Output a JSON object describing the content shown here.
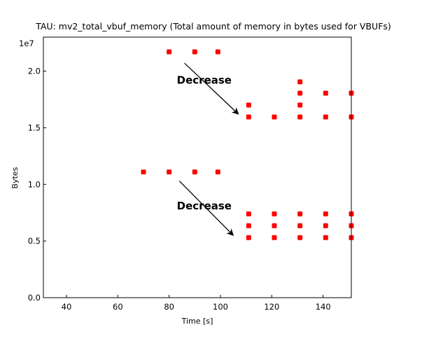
{
  "chart_data": {
    "type": "scatter",
    "title": "TAU: mv2_total_vbuf_memory (Total amount of memory in bytes used for VBUFs)",
    "xlabel": "Time [s]",
    "ylabel": "Bytes",
    "offset_text": "1e7",
    "xlim": [
      31,
      151
    ],
    "ylim": [
      0,
      23000000
    ],
    "xticks": [
      40,
      60,
      80,
      100,
      120,
      140
    ],
    "xtick_labels": [
      "40",
      "60",
      "80",
      "100",
      "120",
      "140"
    ],
    "yticks": [
      0,
      5000000,
      10000000,
      15000000,
      20000000
    ],
    "ytick_labels": [
      "0.0",
      "0.5",
      "1.0",
      "1.5",
      "2.0"
    ],
    "grid": false,
    "marker_color": "#ff0000",
    "points": [
      {
        "x": 80,
        "y": 21700000
      },
      {
        "x": 90,
        "y": 21700000
      },
      {
        "x": 99,
        "y": 21700000
      },
      {
        "x": 111,
        "y": 17000000
      },
      {
        "x": 111,
        "y": 15950000
      },
      {
        "x": 121,
        "y": 15950000
      },
      {
        "x": 131,
        "y": 19050000
      },
      {
        "x": 131,
        "y": 18050000
      },
      {
        "x": 131,
        "y": 17000000
      },
      {
        "x": 131,
        "y": 15950000
      },
      {
        "x": 141,
        "y": 18050000
      },
      {
        "x": 141,
        "y": 15950000
      },
      {
        "x": 151,
        "y": 18050000
      },
      {
        "x": 151,
        "y": 15950000
      },
      {
        "x": 70,
        "y": 11100000
      },
      {
        "x": 80,
        "y": 11100000
      },
      {
        "x": 90,
        "y": 11100000
      },
      {
        "x": 99,
        "y": 11100000
      },
      {
        "x": 111,
        "y": 7400000
      },
      {
        "x": 111,
        "y": 6350000
      },
      {
        "x": 111,
        "y": 5300000
      },
      {
        "x": 121,
        "y": 7400000
      },
      {
        "x": 121,
        "y": 6350000
      },
      {
        "x": 121,
        "y": 5300000
      },
      {
        "x": 131,
        "y": 7400000
      },
      {
        "x": 131,
        "y": 6350000
      },
      {
        "x": 131,
        "y": 5300000
      },
      {
        "x": 141,
        "y": 7400000
      },
      {
        "x": 141,
        "y": 6350000
      },
      {
        "x": 141,
        "y": 5300000
      },
      {
        "x": 151,
        "y": 7400000
      },
      {
        "x": 151,
        "y": 6350000
      },
      {
        "x": 151,
        "y": 5300000
      }
    ],
    "annotations": [
      {
        "text": "Decrease",
        "text_x": 83,
        "text_y": 18900000,
        "arrow_from_x": 86,
        "arrow_from_y": 20700000,
        "arrow_to_x": 107,
        "arrow_to_y": 16200000
      },
      {
        "text": "Decrease",
        "text_x": 83,
        "text_y": 7800000,
        "arrow_from_x": 84,
        "arrow_from_y": 10300000,
        "arrow_to_x": 105,
        "arrow_to_y": 5500000
      }
    ]
  }
}
